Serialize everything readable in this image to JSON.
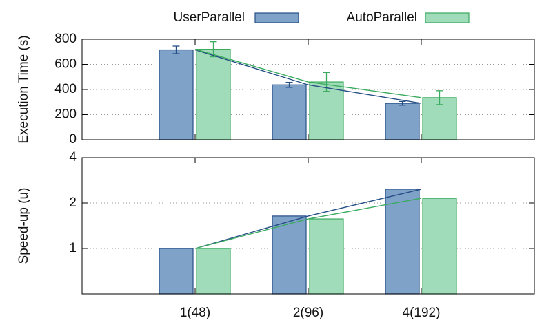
{
  "chart_data": [
    {
      "type": "bar",
      "ylabel": "Execution Time (s)",
      "series": [
        {
          "name": "UserParallel",
          "color": "#7fa2c8",
          "edgecolor": "#264f86",
          "values": [
            715,
            437,
            290
          ],
          "errors": [
            30,
            20,
            15
          ]
        },
        {
          "name": "AutoParallel",
          "color": "#a0dcb9",
          "edgecolor": "#3aaa5e",
          "values": [
            720,
            460,
            335
          ],
          "errors": [
            60,
            75,
            55
          ]
        }
      ],
      "ylim": [
        0,
        800
      ],
      "yticks": [
        0,
        200,
        400,
        600,
        800
      ],
      "grid": true,
      "legend": "top"
    },
    {
      "type": "bar",
      "ylabel": "Speed-up (u)",
      "categories": [
        "1(48)",
        "2(96)",
        "4(192)"
      ],
      "series": [
        {
          "color": "#7fa2c8",
          "edgecolor": "#264f86",
          "values": [
            1,
            1.64,
            2.47
          ]
        },
        {
          "color": "#a0dcb9",
          "edgecolor": "#3aaa5e",
          "values": [
            1,
            1.57,
            2.15
          ]
        }
      ],
      "ylim": [
        0.5,
        4
      ],
      "yticks": [
        1,
        2,
        4
      ],
      "yscale": "log",
      "grid": true
    }
  ]
}
